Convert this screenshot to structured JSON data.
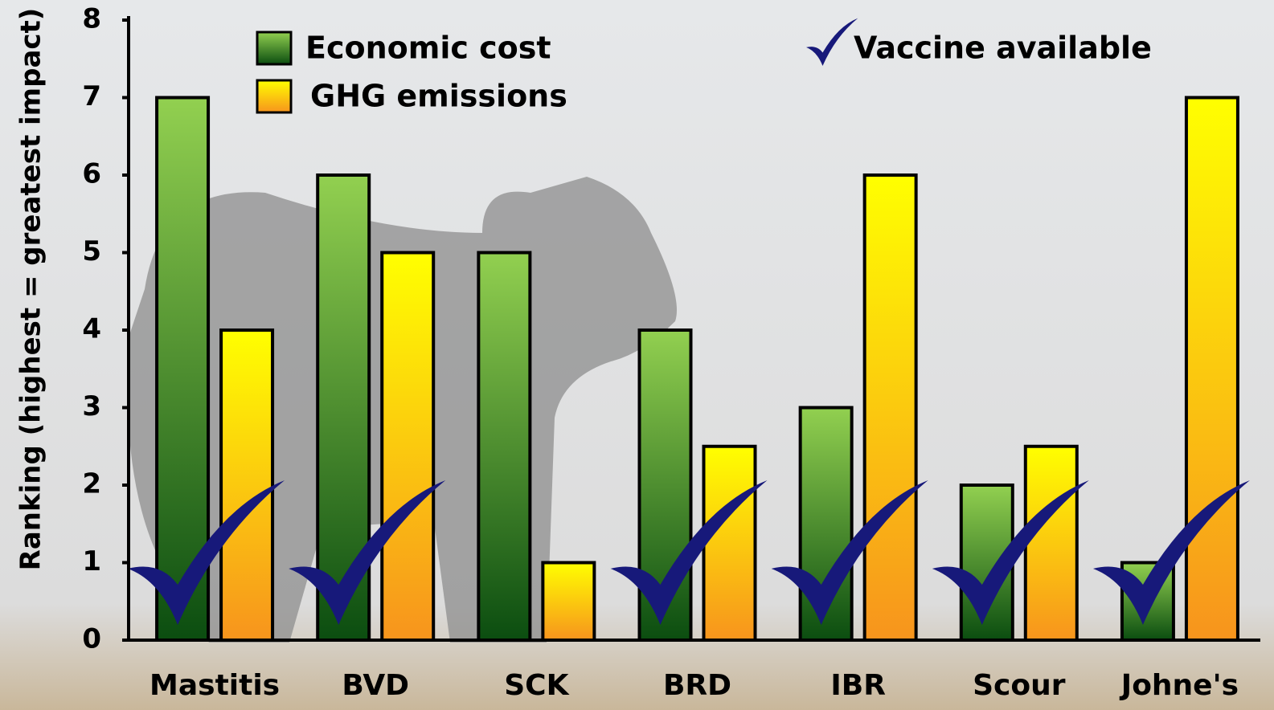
{
  "chart_data": {
    "type": "bar",
    "y_label": "Ranking (highest = greatest impact)",
    "categories": [
      "Mastitis",
      "BVD",
      "SCK",
      "BRD",
      "IBR",
      "Scour",
      "Johne's"
    ],
    "series": [
      {
        "name": "Economic cost",
        "color": "#5aa83a",
        "gradient": [
          "#92d050",
          "#0b4d10"
        ],
        "values": [
          7,
          6,
          5,
          4,
          3,
          2,
          1
        ]
      },
      {
        "name": "GHG emissions",
        "color": "#ffd000",
        "gradient": [
          "#ffff00",
          "#f7941d"
        ],
        "values": [
          4,
          5,
          1,
          2.5,
          6,
          2.5,
          7
        ]
      }
    ],
    "vaccine_label": "Vaccine available",
    "vaccine_color": "#17197a",
    "vaccine_available": [
      true,
      true,
      false,
      true,
      true,
      true,
      true
    ],
    "ylim": [
      0,
      8
    ],
    "yticks": [
      0,
      1,
      2,
      3,
      4,
      5,
      6,
      7,
      8
    ]
  }
}
